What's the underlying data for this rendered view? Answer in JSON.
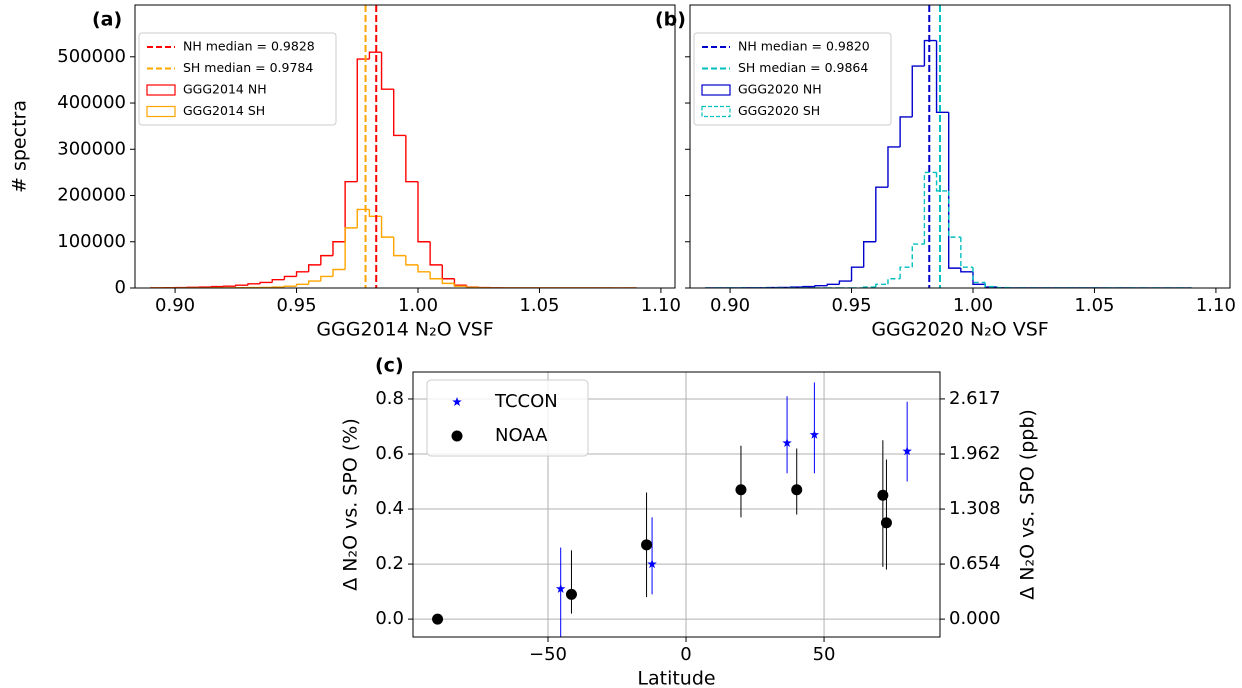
{
  "chart_data": [
    {
      "type": "histogram",
      "panel_label": "(a)",
      "xlabel": "GGG2014 N₂O VSF",
      "ylabel": "# spectra",
      "bins": [
        0.89,
        0.895,
        0.9,
        0.905,
        0.91,
        0.915,
        0.92,
        0.925,
        0.93,
        0.935,
        0.94,
        0.945,
        0.95,
        0.955,
        0.96,
        0.965,
        0.97,
        0.975,
        0.98,
        0.985,
        0.99,
        0.995,
        1.0,
        1.005,
        1.01,
        1.015,
        1.02,
        1.025,
        1.03,
        1.035,
        1.04,
        1.045,
        1.05,
        1.055,
        1.06,
        1.065,
        1.07,
        1.075,
        1.08,
        1.085,
        1.09
      ],
      "series": [
        {
          "name": "GGG2014 NH",
          "color": "#ff0000",
          "linestyle": "solid",
          "values": [
            500,
            700,
            1000,
            1500,
            2000,
            3000,
            4000,
            6000,
            9000,
            12000,
            18000,
            25000,
            35000,
            50000,
            70000,
            100000,
            230000,
            495000,
            510000,
            430000,
            330000,
            230000,
            100000,
            50000,
            20000,
            6000,
            2000,
            800,
            300,
            150,
            80,
            40,
            20,
            10,
            5,
            3,
            2,
            1,
            1,
            0
          ]
        },
        {
          "name": "GGG2014 SH",
          "color": "#ffa500",
          "linestyle": "solid",
          "values": [
            50,
            80,
            100,
            150,
            200,
            300,
            400,
            600,
            900,
            1300,
            2000,
            4000,
            8000,
            15000,
            25000,
            40000,
            130000,
            170000,
            155000,
            110000,
            70000,
            50000,
            35000,
            20000,
            10000,
            4000,
            1500,
            500,
            200,
            100,
            50,
            20,
            10,
            5,
            2,
            1,
            1,
            0,
            0,
            0
          ]
        }
      ],
      "median_lines": [
        {
          "name": "NH median = 0.9828",
          "value": 0.9828,
          "color": "#ff0000"
        },
        {
          "name": "SH median = 0.9784",
          "value": 0.9784,
          "color": "#ffa500"
        }
      ],
      "xlim": [
        0.8835,
        1.1058
      ],
      "ylim": [
        0,
        612000
      ],
      "xticks": [
        {
          "value": 0.9,
          "label": "0.90"
        },
        0.95,
        {
          "value": 1.0,
          "label": "1.00"
        },
        1.05,
        {
          "value": 1.1,
          "label": "1.10"
        }
      ],
      "yticks": [
        0,
        100000,
        200000,
        300000,
        400000,
        500000
      ],
      "legend": "upper left"
    },
    {
      "type": "histogram",
      "panel_label": "(b)",
      "xlabel": "GGG2020 N₂O VSF",
      "sharey": true,
      "bins": [
        0.89,
        0.895,
        0.9,
        0.905,
        0.91,
        0.915,
        0.92,
        0.925,
        0.93,
        0.935,
        0.94,
        0.945,
        0.95,
        0.955,
        0.96,
        0.965,
        0.97,
        0.975,
        0.98,
        0.985,
        0.99,
        0.995,
        1.0,
        1.005,
        1.01,
        1.015,
        1.02,
        1.025,
        1.03,
        1.035,
        1.04,
        1.045,
        1.05,
        1.055,
        1.06,
        1.065,
        1.07,
        1.075,
        1.08,
        1.085,
        1.09
      ],
      "series": [
        {
          "name": "GGG2020 NH",
          "color": "#0000cc",
          "linestyle": "solid",
          "values": [
            100,
            150,
            200,
            300,
            500,
            800,
            1200,
            2000,
            3000,
            5000,
            8000,
            15000,
            45000,
            100000,
            218000,
            305000,
            370000,
            480000,
            535000,
            380000,
            43000,
            35000,
            8000,
            2000,
            500,
            200,
            100,
            50,
            20,
            10,
            5,
            2,
            1,
            1,
            0,
            0,
            0,
            0,
            0,
            0
          ]
        },
        {
          "name": "GGG2020 SH",
          "color": "#00bfbf",
          "linestyle": "dashed",
          "values": [
            0,
            0,
            0,
            0,
            0,
            0,
            0,
            0,
            0,
            0,
            0,
            0,
            0,
            2000,
            8000,
            20000,
            45000,
            95000,
            250000,
            210000,
            110000,
            45000,
            12000,
            3000,
            800,
            200,
            0,
            0,
            0,
            0,
            0,
            0,
            0,
            0,
            0,
            0,
            0,
            0,
            0,
            0
          ]
        }
      ],
      "median_lines": [
        {
          "name": "NH median = 0.9820",
          "value": 0.982,
          "color": "#0000cc"
        },
        {
          "name": "SH median = 0.9864",
          "value": 0.9864,
          "color": "#00bfbf"
        }
      ],
      "xlim": [
        0.8835,
        1.1058
      ],
      "ylim": [
        0,
        612000
      ],
      "xticks": [
        {
          "value": 0.9,
          "label": "0.90"
        },
        0.95,
        {
          "value": 1.0,
          "label": "1.00"
        },
        1.05,
        {
          "value": 1.1,
          "label": "1.10"
        }
      ],
      "yticks": [
        0,
        100000,
        200000,
        300000,
        400000,
        500000
      ],
      "legend": "upper left"
    },
    {
      "type": "scatter",
      "panel_label": "(c)",
      "xlabel": "Latitude",
      "ylabel": "Δ N₂O vs. SPO (%)",
      "y2label": "Δ N₂O vs. SPO (ppb)",
      "series": [
        {
          "name": "TCCON",
          "color": "#0000ff",
          "marker": "star",
          "x": [
            -45.4,
            -12.3,
            36.6,
            46.5,
            80.1
          ],
          "values": [
            0.11,
            0.2,
            0.64,
            0.67,
            0.61
          ],
          "error_low": [
            0.2,
            0.11,
            0.11,
            0.14,
            0.11
          ],
          "error_high": [
            0.15,
            0.17,
            0.17,
            0.19,
            0.18
          ]
        },
        {
          "name": "NOAA",
          "color": "#000000",
          "marker": "circle",
          "x": [
            -90,
            -41.5,
            -14.3,
            19.9,
            40.1,
            71.3,
            72.6
          ],
          "values": [
            0,
            0.09,
            0.27,
            0.47,
            0.47,
            0.45,
            0.35
          ],
          "error_low": [
            0,
            0.07,
            0.19,
            0.1,
            0.09,
            0.26,
            0.17
          ],
          "error_high": [
            0,
            0.16,
            0.19,
            0.16,
            0.15,
            0.2,
            0.23
          ]
        }
      ],
      "xlim": [
        -98.9,
        92
      ],
      "ylim": [
        -0.065,
        0.898
      ],
      "y2lim": [
        -0.2126,
        2.937
      ],
      "xticks": [
        {
          "value": -50,
          "label": "−50"
        },
        0,
        50
      ],
      "yticks": [
        {
          "value": 0,
          "label": "0.0"
        },
        0.2,
        0.4,
        0.6,
        0.8
      ],
      "y2ticks": [
        {
          "value": 0,
          "label": "0.000"
        },
        0.654,
        1.308,
        1.962,
        2.617
      ],
      "grid": true,
      "legend": "upper left"
    }
  ]
}
